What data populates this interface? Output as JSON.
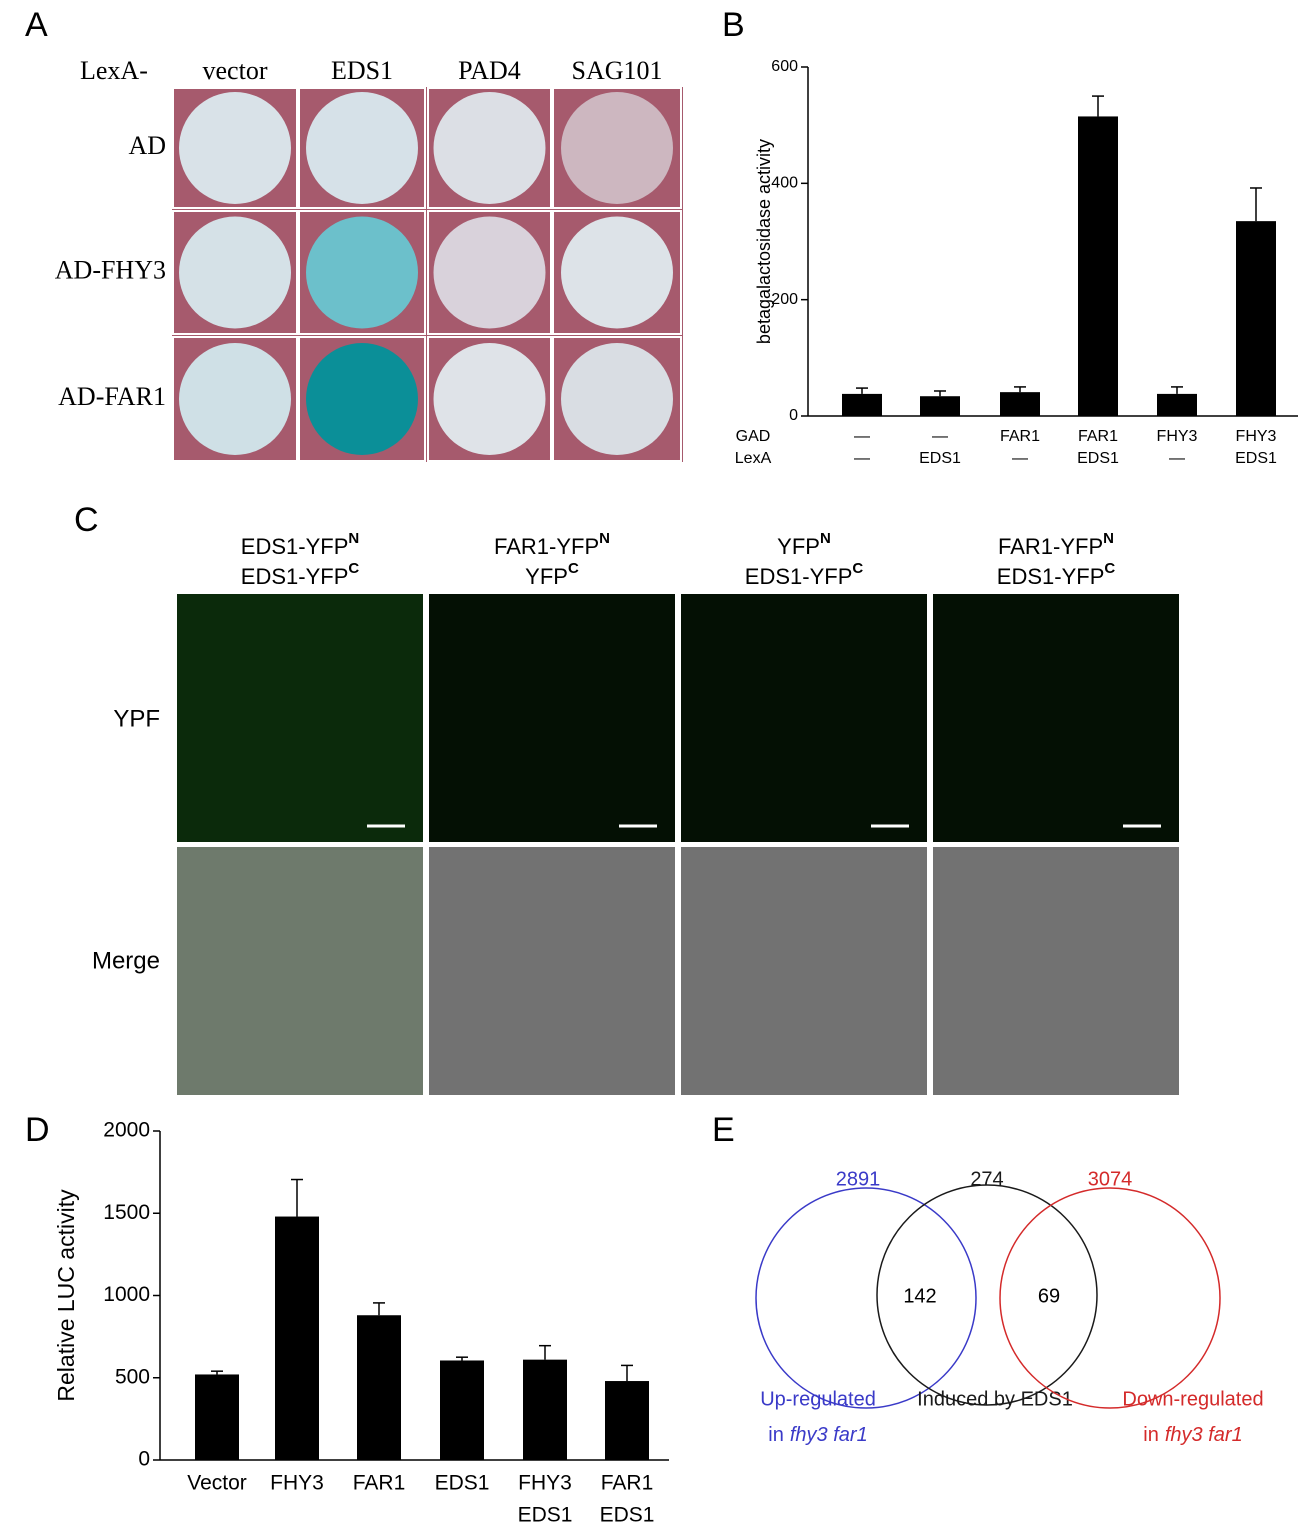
{
  "panel_labels": [
    "A",
    "B",
    "C",
    "D",
    "E"
  ],
  "panel_a": {
    "header": "LexA-",
    "columns": [
      "vector",
      "EDS1",
      "PAD4",
      "SAG101"
    ],
    "rows": [
      "AD",
      "AD-FHY3",
      "AD-FAR1"
    ]
  },
  "chart_data": [
    {
      "type": "bar",
      "y_label": "betagalactosidase activity",
      "category_row_labels": [
        "GAD",
        "LexA"
      ],
      "categories": [
        [
          "—",
          "—"
        ],
        [
          "—",
          "EDS1"
        ],
        [
          "FAR1",
          "—"
        ],
        [
          "FAR1",
          "EDS1"
        ],
        [
          "FHY3",
          "—"
        ],
        [
          "FHY3",
          "EDS1"
        ]
      ],
      "values": [
        38,
        34,
        41,
        515,
        38,
        335
      ],
      "errors": [
        10,
        9,
        9,
        35,
        12,
        57
      ],
      "color": "#000000",
      "ylim": [
        0,
        600
      ],
      "yticks": [
        0,
        200,
        400,
        600
      ]
    },
    {
      "type": "bar",
      "y_label": "Relative LUC activity",
      "categories": [
        [
          "Vector"
        ],
        [
          "FHY3"
        ],
        [
          "FAR1"
        ],
        [
          "EDS1"
        ],
        [
          "FHY3",
          "EDS1"
        ],
        [
          "FAR1",
          "EDS1"
        ]
      ],
      "values": [
        520,
        1480,
        880,
        605,
        610,
        480
      ],
      "errors": [
        20,
        225,
        75,
        20,
        85,
        95
      ],
      "color": "#000000",
      "ylim": [
        0,
        2000
      ],
      "yticks": [
        0,
        500,
        1000,
        1500,
        2000
      ]
    }
  ],
  "panel_c": {
    "columns": [
      [
        {
          "text": "EDS1-YFP",
          "sup": "N"
        },
        {
          "text": "EDS1-YFP",
          "sup": "C"
        }
      ],
      [
        {
          "text": "FAR1-YFP",
          "sup": "N"
        },
        {
          "text": "YFP",
          "sup": "C"
        }
      ],
      [
        {
          "text": "YFP",
          "sup": "N"
        },
        {
          "text": "EDS1-YFP",
          "sup": "C"
        }
      ],
      [
        {
          "text": "FAR1-YFP",
          "sup": "N"
        },
        {
          "text": "EDS1-YFP",
          "sup": "C"
        }
      ]
    ],
    "rows": [
      "YPF",
      "Merge"
    ]
  },
  "panel_e": {
    "sets": [
      {
        "count": 2891,
        "color": "#3a3ac8",
        "label_lines": [
          "Up-regulated"
        ],
        "label_prefix": "in",
        "label_italic": "fhy3 far1"
      },
      {
        "count": 274,
        "color": "#1a1a1a",
        "label_lines": [
          "Induced by EDS1"
        ]
      },
      {
        "count": 3074,
        "color": "#d42a2a",
        "label_lines": [
          "Down-regulated"
        ],
        "label_prefix": "in",
        "label_italic": "fhy3 far1"
      }
    ],
    "overlaps": [
      142,
      69
    ]
  }
}
